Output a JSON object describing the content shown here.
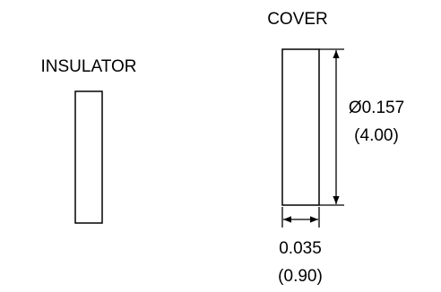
{
  "parts": {
    "insulator": {
      "label": "INSULATOR"
    },
    "cover": {
      "label": "COVER"
    }
  },
  "dimensions": {
    "diameter": {
      "inch": "Ø0.157",
      "mm": "(4.00)"
    },
    "thickness": {
      "inch": "0.035",
      "mm": "(0.90)"
    }
  },
  "colors": {
    "line": "#000000",
    "background": "#ffffff"
  }
}
